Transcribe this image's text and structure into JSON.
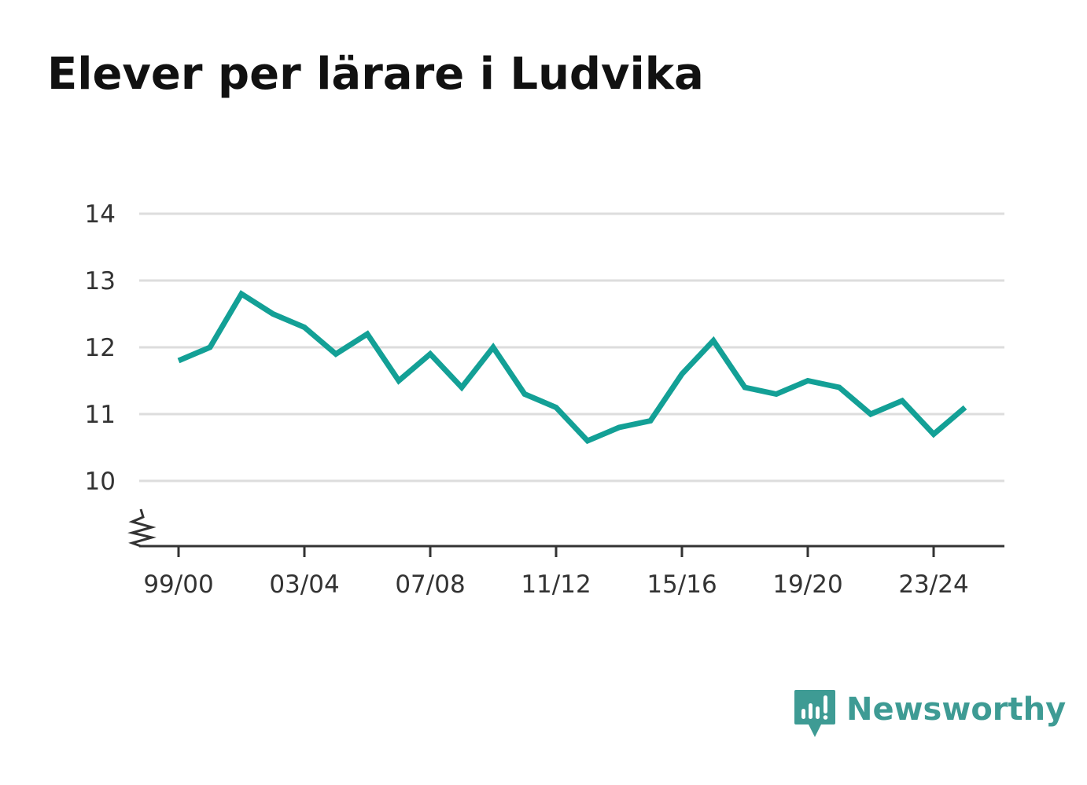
{
  "title": "Elever per lärare i Ludvika",
  "brand": {
    "name": "Newsworthy",
    "icon": "newsworthy-logo-icon",
    "color": "#3e9b94"
  },
  "colors": {
    "line": "#13a096",
    "grid": "#dddddd",
    "axis": "#333333",
    "text": "#333333",
    "title": "#111111"
  },
  "chart_data": {
    "type": "line",
    "title": "Elever per lärare i Ludvika",
    "xlabel": "",
    "ylabel": "",
    "x": [
      "99/00",
      "00/01",
      "01/02",
      "02/03",
      "03/04",
      "04/05",
      "05/06",
      "06/07",
      "07/08",
      "08/09",
      "09/10",
      "10/11",
      "11/12",
      "12/13",
      "13/14",
      "14/15",
      "15/16",
      "16/17",
      "17/18",
      "18/19",
      "19/20",
      "20/21",
      "21/22",
      "22/23",
      "23/24",
      "24/25"
    ],
    "x_tick_labels": [
      "99/00",
      "03/04",
      "07/08",
      "11/12",
      "15/16",
      "19/20",
      "23/24"
    ],
    "y_tick_labels": [
      "10",
      "11",
      "12",
      "13",
      "14"
    ],
    "ylim": [
      9,
      14
    ],
    "y_axis_break": true,
    "grid": true,
    "legend": "none",
    "series": [
      {
        "values": [
          11.8,
          12.0,
          12.8,
          12.5,
          12.3,
          11.9,
          12.2,
          11.5,
          11.9,
          11.4,
          12.0,
          11.3,
          11.1,
          10.6,
          10.8,
          10.9,
          11.6,
          12.1,
          11.4,
          11.3,
          11.5,
          11.4,
          11.0,
          11.2,
          10.7,
          11.1
        ]
      }
    ]
  }
}
